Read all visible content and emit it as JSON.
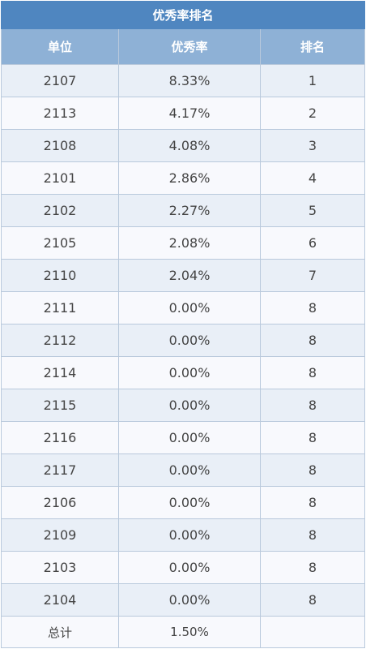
{
  "table": {
    "title": "优秀率排名",
    "headers": [
      "单位",
      "优秀率",
      "排名"
    ],
    "rows": [
      [
        "2107",
        "8.33%",
        "1"
      ],
      [
        "2113",
        "4.17%",
        "2"
      ],
      [
        "2108",
        "4.08%",
        "3"
      ],
      [
        "2101",
        "2.86%",
        "4"
      ],
      [
        "2102",
        "2.27%",
        "5"
      ],
      [
        "2105",
        "2.08%",
        "6"
      ],
      [
        "2110",
        "2.04%",
        "7"
      ],
      [
        "2111",
        "0.00%",
        "8"
      ],
      [
        "2112",
        "0.00%",
        "8"
      ],
      [
        "2114",
        "0.00%",
        "8"
      ],
      [
        "2115",
        "0.00%",
        "8"
      ],
      [
        "2116",
        "0.00%",
        "8"
      ],
      [
        "2117",
        "0.00%",
        "8"
      ],
      [
        "2106",
        "0.00%",
        "8"
      ],
      [
        "2109",
        "0.00%",
        "8"
      ],
      [
        "2103",
        "0.00%",
        "8"
      ],
      [
        "2104",
        "0.00%",
        "8"
      ]
    ],
    "total": [
      "总计",
      "1.50%",
      ""
    ]
  },
  "colors": {
    "title_bg": "#4f86c0",
    "header_bg": "#8eb1d6",
    "row_odd_bg": "#e9eff7",
    "row_even_bg": "#f8f9fd",
    "border": "#b9c9dc",
    "text": "#444444"
  }
}
